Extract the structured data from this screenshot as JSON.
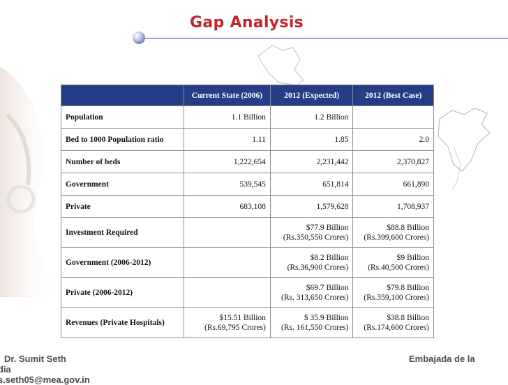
{
  "title": "Gap Analysis",
  "table": {
    "headers": [
      "",
      "Current State (2006)",
      "2012 (Expected)",
      "2012 (Best Case)"
    ],
    "rows": [
      {
        "label": "Population",
        "values": [
          [
            "1.1 Billion"
          ],
          [
            "1.2 Billion"
          ],
          [
            ""
          ]
        ]
      },
      {
        "label": "Bed to 1000 Population ratio",
        "values": [
          [
            "1.11"
          ],
          [
            "1.85"
          ],
          [
            "2.0"
          ]
        ]
      },
      {
        "label": "Number of beds",
        "values": [
          [
            "1,222,654"
          ],
          [
            "2,231,442"
          ],
          [
            "2,370,827"
          ]
        ]
      },
      {
        "label": "Government",
        "values": [
          [
            "539,545"
          ],
          [
            "651,814"
          ],
          [
            "661,890"
          ]
        ]
      },
      {
        "label": "Private",
        "values": [
          [
            "683,108"
          ],
          [
            "1,579,628"
          ],
          [
            "1,708,937"
          ]
        ]
      },
      {
        "label": "Investment Required",
        "values": [
          [
            ""
          ],
          [
            "$77.9 Billion",
            "(Rs.350,550 Crores)"
          ],
          [
            "$88.8 Billion",
            "(Rs.399,600 Crores)"
          ]
        ]
      },
      {
        "label": "Government (2006-2012)",
        "values": [
          [
            ""
          ],
          [
            "$8.2 Billion",
            "(Rs.36,900 Crores)"
          ],
          [
            "$9 Billion",
            "(Rs.40,500 Crores)"
          ]
        ]
      },
      {
        "label": "Private (2006-2012)",
        "values": [
          [
            ""
          ],
          [
            "$69.7 Billion",
            "(Rs. 313,650 Crores)"
          ],
          [
            "$79.8 Billion",
            "(Rs.359,100 Crores)"
          ]
        ]
      },
      {
        "label": "Revenues (Private Hospitals)",
        "values": [
          [
            "$15.51 Billion",
            "(Rs.69,795 Crores)"
          ],
          [
            "$ 35.9 Billion",
            "(Rs. 161,550 Crores)"
          ],
          [
            "$38.8 Billion",
            "(Rs.174,600 Crores)"
          ]
        ]
      }
    ]
  },
  "footer": {
    "author": "Dr. Sumit Seth",
    "embassy": "Embajada de la",
    "country": "dia",
    "email": "s.seth05@mea.gov.in"
  }
}
